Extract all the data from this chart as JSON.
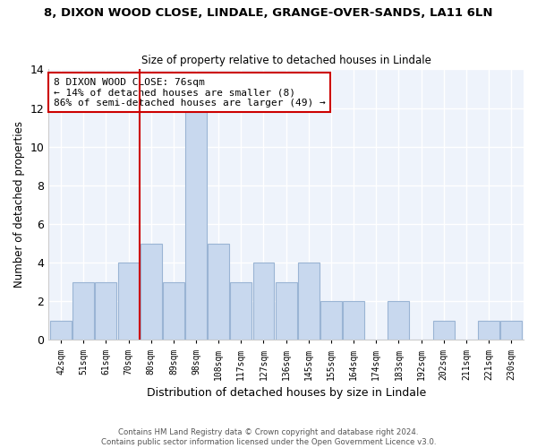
{
  "title": "8, DIXON WOOD CLOSE, LINDALE, GRANGE-OVER-SANDS, LA11 6LN",
  "subtitle": "Size of property relative to detached houses in Lindale",
  "xlabel": "Distribution of detached houses by size in Lindale",
  "ylabel": "Number of detached properties",
  "bin_labels": [
    "42sqm",
    "51sqm",
    "61sqm",
    "70sqm",
    "80sqm",
    "89sqm",
    "98sqm",
    "108sqm",
    "117sqm",
    "127sqm",
    "136sqm",
    "145sqm",
    "155sqm",
    "164sqm",
    "174sqm",
    "183sqm",
    "192sqm",
    "202sqm",
    "211sqm",
    "221sqm",
    "230sqm"
  ],
  "bar_heights": [
    1,
    3,
    3,
    4,
    5,
    3,
    12,
    5,
    3,
    4,
    3,
    4,
    2,
    2,
    0,
    2,
    0,
    1,
    0,
    1,
    1
  ],
  "bar_color": "#c8d8ee",
  "bar_edge_color": "#9ab4d4",
  "highlight_line_color": "#cc0000",
  "ylim": [
    0,
    14
  ],
  "yticks": [
    0,
    2,
    4,
    6,
    8,
    10,
    12,
    14
  ],
  "annotation_line1": "8 DIXON WOOD CLOSE: 76sqm",
  "annotation_line2": "← 14% of detached houses are smaller (8)",
  "annotation_line3": "86% of semi-detached houses are larger (49) →",
  "annotation_box_color": "#ffffff",
  "annotation_border_color": "#cc0000",
  "footer_line1": "Contains HM Land Registry data © Crown copyright and database right 2024.",
  "footer_line2": "Contains public sector information licensed under the Open Government Licence v3.0."
}
